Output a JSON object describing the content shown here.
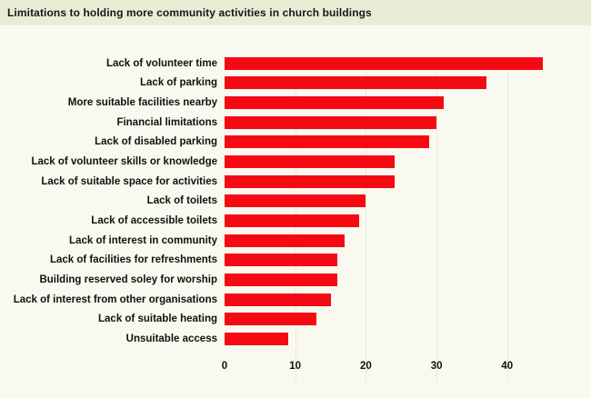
{
  "header": {
    "title": "Limitations to holding more community activities in church buildings"
  },
  "chart_data": {
    "type": "bar",
    "orientation": "horizontal",
    "title": "Limitations to holding more community activities in church buildings",
    "xlabel": "",
    "ylabel": "",
    "categories": [
      "Lack of volunteer time",
      "Lack of parking",
      "More suitable facilities nearby",
      "Financial limitations",
      "Lack of disabled parking",
      "Lack of volunteer skills or knowledge",
      "Lack of suitable space for activities",
      "Lack of toilets",
      "Lack of accessible toilets",
      "Lack of interest in community",
      "Lack of facilities for refreshments",
      "Building reserved soley for worship",
      "Lack of interest from other organisations",
      "Lack of suitable heating",
      "Unsuitable access"
    ],
    "values": [
      45,
      37,
      31,
      30,
      29,
      24,
      24,
      20,
      19,
      17,
      16,
      16,
      15,
      13,
      9
    ],
    "xlim": [
      0,
      51
    ],
    "x_ticks": [
      0,
      10,
      20,
      30,
      40
    ],
    "grid": "vertical",
    "legend": "none",
    "bar_color": "#f50a14",
    "gridline_color": "#ecead9",
    "background_color": "#faf9f0",
    "title_band_color": "#eaedd5",
    "text_color": "#111111"
  }
}
